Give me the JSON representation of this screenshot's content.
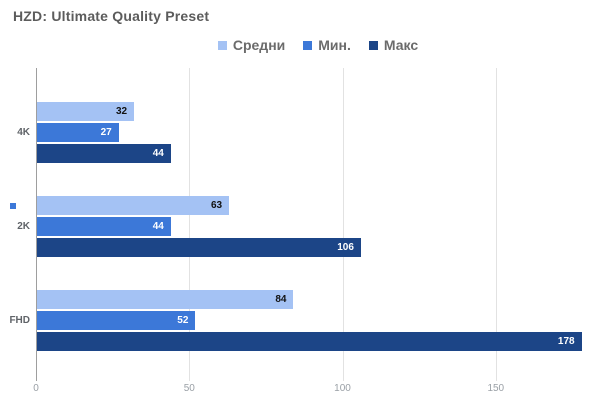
{
  "title": "HZD: Ultimate Quality Preset",
  "legend": {
    "items": [
      {
        "label": "Средни",
        "color": "#a4c2f4"
      },
      {
        "label": "Мин.",
        "color": "#3c78d8"
      },
      {
        "label": "Макс",
        "color": "#1c4587"
      }
    ]
  },
  "chart_data": {
    "type": "bar",
    "orientation": "horizontal",
    "title": "HZD: Ultimate Quality Preset",
    "categories": [
      "4K",
      "2K",
      "FHD"
    ],
    "series": [
      {
        "name": "Средни",
        "color": "#a4c2f4",
        "label_color": "#111111",
        "values": [
          32,
          63,
          84
        ]
      },
      {
        "name": "Мин.",
        "color": "#3c78d8",
        "label_color": "#ffffff",
        "values": [
          27,
          44,
          52
        ]
      },
      {
        "name": "Макс",
        "color": "#1c4587",
        "label_color": "#ffffff",
        "values": [
          44,
          106,
          178
        ]
      }
    ],
    "x_ticks": [
      0,
      50,
      100,
      150
    ],
    "xlim": [
      0,
      184
    ],
    "grid": true,
    "legend_position": "top",
    "value_labels": "inside-end"
  },
  "colors": {
    "title_text": "#5c5c5c",
    "legend_text": "#6b6b6b",
    "category_text": "#5f6368",
    "tick_text": "#9aa0a6",
    "axis_line": "#9e9e9e",
    "gridline": "#e2e2e2",
    "stray_square": "#3c78d8"
  }
}
